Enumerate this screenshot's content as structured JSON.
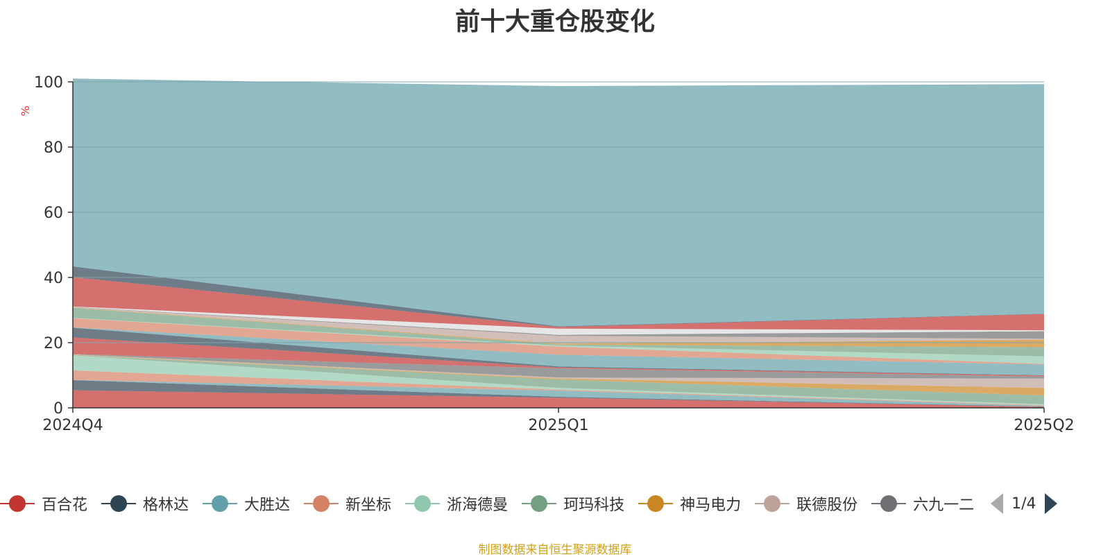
{
  "chart_data": {
    "type": "area",
    "title": "前十大重仓股变化",
    "ylabel": "%",
    "ylim": [
      0,
      100
    ],
    "yticks": [
      0,
      20,
      40,
      60,
      80,
      100
    ],
    "categories": [
      "2024Q4",
      "2025Q1",
      "2025Q2"
    ],
    "series": [
      {
        "name": "百合花",
        "color": "#c23531",
        "values": [
          5.4,
          3.1,
          0.3
        ]
      },
      {
        "name": "格林达",
        "color": "#2f4554",
        "values": [
          3.1,
          0.3,
          0.1
        ]
      },
      {
        "name": "大胜达",
        "color": "#61a0a8",
        "values": [
          0.1,
          1.9,
          0.2
        ]
      },
      {
        "name": "新坐标",
        "color": "#d48265",
        "values": [
          2.9,
          0.3,
          0.2
        ]
      },
      {
        "name": "浙海德曼",
        "color": "#91c7ae",
        "values": [
          4.6,
          0.5,
          0.3
        ]
      },
      {
        "name": "珂玛科技",
        "color": "#749f83",
        "values": [
          0.1,
          2.6,
          2.7
        ]
      },
      {
        "name": "神马电力",
        "color": "#ca8622",
        "values": [
          0.1,
          0.3,
          2.3
        ]
      },
      {
        "name": "联德股份",
        "color": "#bda29a",
        "values": [
          0.1,
          0.3,
          2.9
        ]
      },
      {
        "name": "六九一二",
        "color": "#6e7074",
        "values": [
          0.1,
          2.8,
          0.6
        ]
      },
      {
        "name": "",
        "color": "#c23531",
        "values": [
          5.1,
          0.3,
          0.3
        ]
      },
      {
        "name": "",
        "color": "#2f4554",
        "values": [
          3.0,
          0.3,
          0.1
        ]
      },
      {
        "name": "",
        "color": "#61a0a8",
        "values": [
          0.1,
          3.6,
          3.3
        ]
      },
      {
        "name": "",
        "color": "#d48265",
        "values": [
          2.8,
          2.5,
          0.2
        ]
      },
      {
        "name": "",
        "color": "#91c7ae",
        "values": [
          0.1,
          0.3,
          2.3
        ]
      },
      {
        "name": "",
        "color": "#749f83",
        "values": [
          3.1,
          0.3,
          2.8
        ]
      },
      {
        "name": "",
        "color": "#ca8622",
        "values": [
          0.1,
          0.3,
          2.3
        ]
      },
      {
        "name": "",
        "color": "#bda29a",
        "values": [
          0.1,
          2.4,
          0.3
        ]
      },
      {
        "name": "",
        "color": "#6e7074",
        "values": [
          0.1,
          0.3,
          2.3
        ]
      },
      {
        "name": "",
        "color": "#dcdcdc",
        "values": [
          0.1,
          1.9,
          0.3
        ]
      },
      {
        "name": "",
        "color": "#c23531",
        "values": [
          9.0,
          0.5,
          5.0
        ]
      },
      {
        "name": "",
        "color": "#2f4554",
        "values": [
          3.3,
          0.2,
          0.1
        ]
      },
      {
        "name": "",
        "color": "#61a0a8",
        "values": [
          57.6,
          73.7,
          70.4
        ]
      }
    ]
  },
  "legend": {
    "items": [
      {
        "label": "百合花",
        "color": "#c23531"
      },
      {
        "label": "格林达",
        "color": "#2f4554"
      },
      {
        "label": "大胜达",
        "color": "#61a0a8"
      },
      {
        "label": "新坐标",
        "color": "#d48265"
      },
      {
        "label": "浙海德曼",
        "color": "#91c7ae"
      },
      {
        "label": "珂玛科技",
        "color": "#749f83"
      },
      {
        "label": "神马电力",
        "color": "#ca8622"
      },
      {
        "label": "联德股份",
        "color": "#bda29a"
      },
      {
        "label": "六九一二",
        "color": "#6e7074"
      }
    ],
    "page_text": "1/4"
  },
  "source_text": "制图数据来自恒生聚源数据库",
  "colors": {
    "axis": "#333333",
    "grid": "#7fa5ad",
    "ylabel": "#e03030",
    "source": "#d4a017"
  }
}
